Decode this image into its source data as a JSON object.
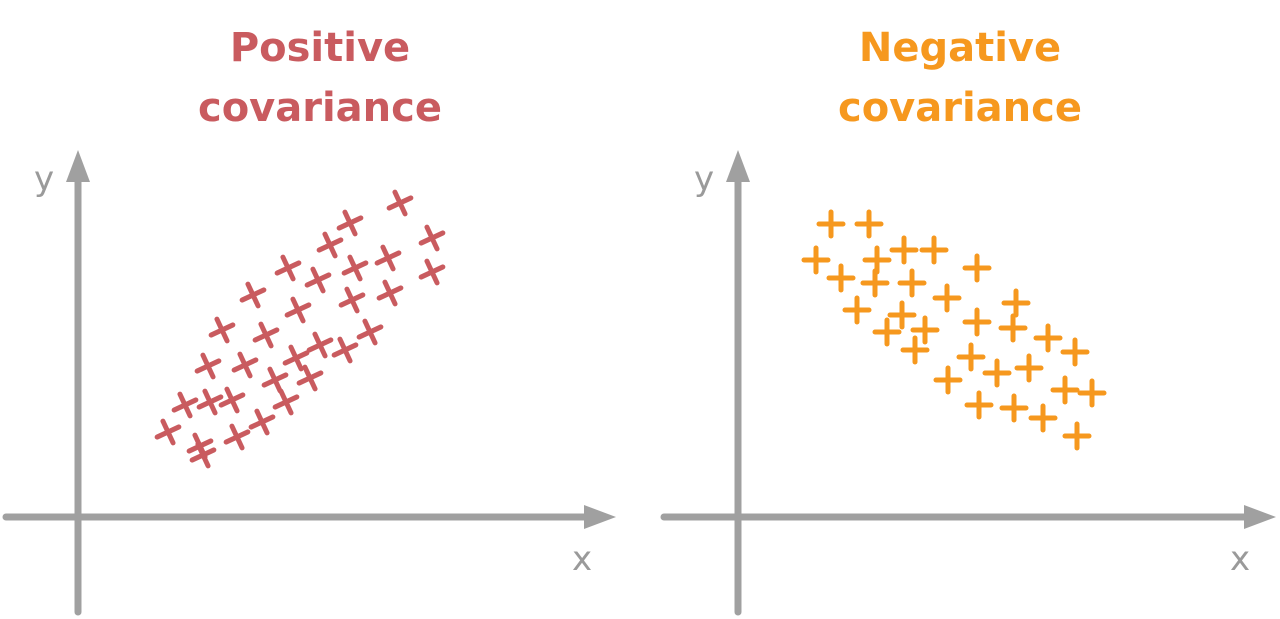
{
  "colors": {
    "positive": "#c95b5f",
    "negative": "#f6981e",
    "axis": "#a0a0a0"
  },
  "panels": [
    {
      "title_line1": "Positive",
      "title_line2": "covariance",
      "xlabel": "x",
      "ylabel": "y",
      "relationship": "positive",
      "marker": "x-cross"
    },
    {
      "title_line1": "Negative",
      "title_line2": "covariance",
      "xlabel": "x",
      "ylabel": "y",
      "relationship": "negative",
      "marker": "plus"
    }
  ]
}
